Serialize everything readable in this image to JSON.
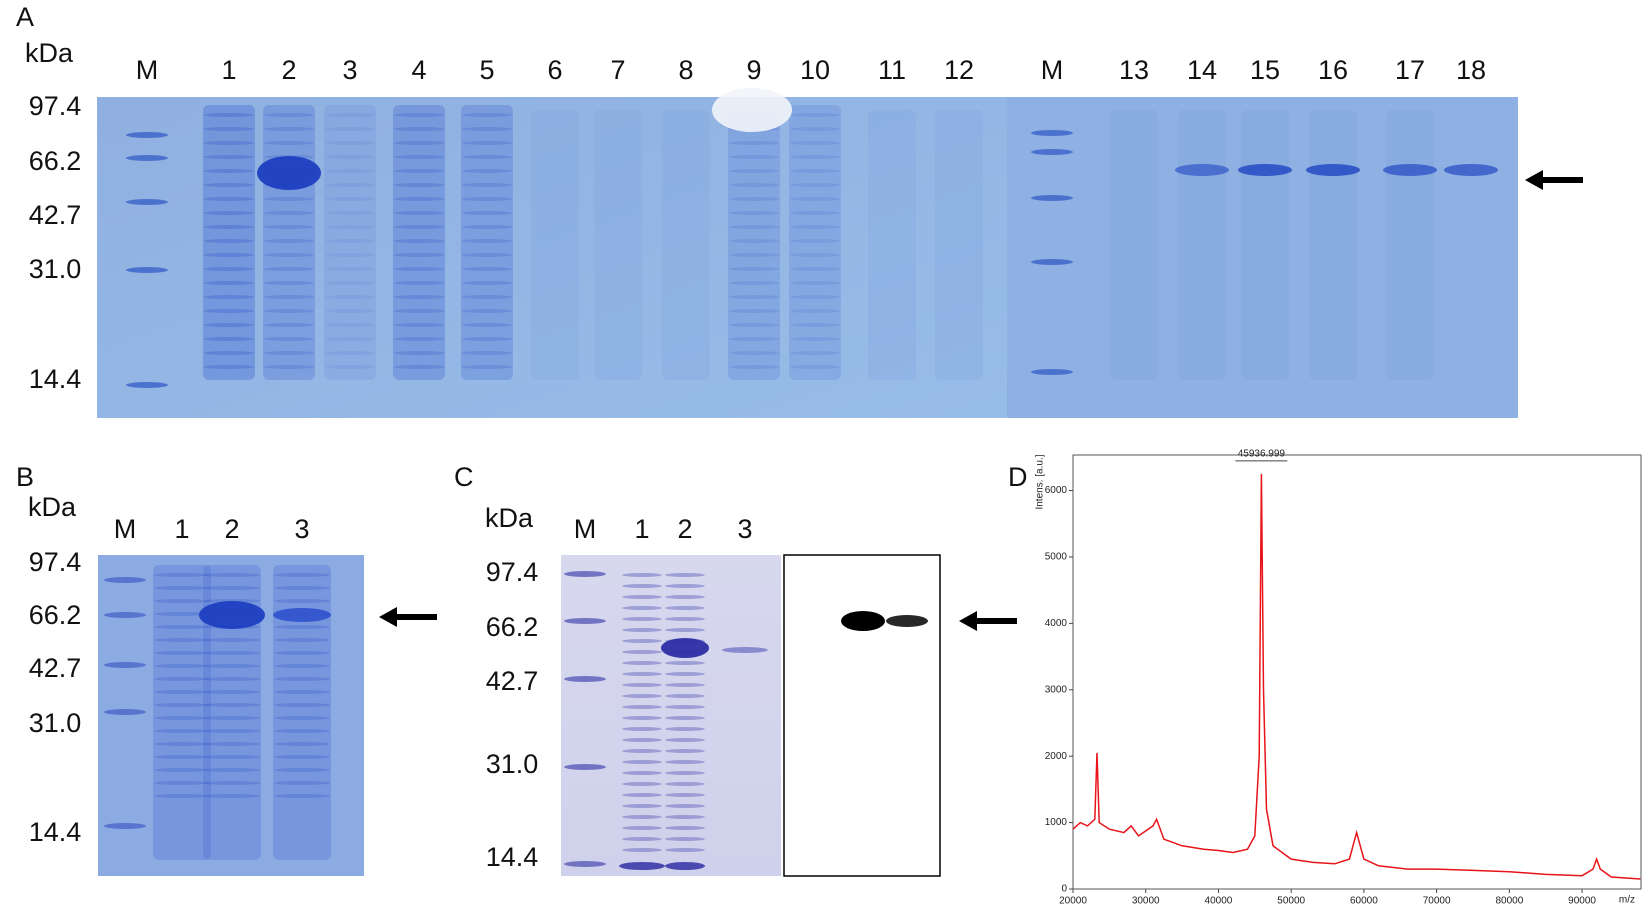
{
  "panels": {
    "A": {
      "label": "A",
      "unit": "kDa",
      "markers": [
        "97.4",
        "66.2",
        "42.7",
        "31.0",
        "14.4"
      ],
      "lanes": [
        "M",
        "1",
        "2",
        "3",
        "4",
        "5",
        "6",
        "7",
        "8",
        "9",
        "10",
        "11",
        "12",
        "M",
        "13",
        "14",
        "15",
        "16",
        "17",
        "18"
      ]
    },
    "B": {
      "label": "B",
      "unit": "kDa",
      "markers": [
        "97.4",
        "66.2",
        "42.7",
        "31.0",
        "14.4"
      ],
      "lanes": [
        "M",
        "1",
        "2",
        "3"
      ]
    },
    "C": {
      "label": "C",
      "unit": "kDa",
      "markers": [
        "97.4",
        "66.2",
        "42.7",
        "31.0",
        "14.4"
      ],
      "lanes": [
        "M",
        "1",
        "2",
        "3"
      ]
    }
  },
  "chart_data": {
    "type": "line",
    "panel_label": "D",
    "y_label": "Intens. [a.u.]",
    "x_label": "m/z",
    "peak_label": "45936.999",
    "x": [
      20000,
      21000,
      22000,
      23000,
      23300,
      23600,
      25000,
      27000,
      28000,
      29000,
      31000,
      31500,
      32500,
      35000,
      38000,
      40000,
      42000,
      44000,
      45000,
      45600,
      45900,
      46200,
      46600,
      47500,
      50000,
      53000,
      56000,
      58000,
      59000,
      60000,
      62000,
      66000,
      70000,
      75000,
      80000,
      85000,
      90000,
      91500,
      92000,
      92500,
      94000,
      98000
    ],
    "series": [
      {
        "color": "#e8141a",
        "values": [
          900,
          1000,
          950,
          1050,
          2050,
          1000,
          900,
          850,
          950,
          800,
          950,
          1050,
          750,
          650,
          600,
          580,
          550,
          600,
          800,
          2000,
          6250,
          3000,
          1200,
          650,
          450,
          400,
          380,
          450,
          850,
          450,
          350,
          300,
          300,
          280,
          260,
          220,
          200,
          300,
          450,
          300,
          180,
          150
        ]
      }
    ],
    "xlim": [
      20000,
      98100
    ],
    "ylim": [
      0,
      6535
    ],
    "xticks": [
      20000,
      30000,
      40000,
      50000,
      60000,
      70000,
      80000,
      90000
    ],
    "yticks": [
      0,
      1000,
      2000,
      3000,
      4000,
      5000,
      6000
    ]
  }
}
